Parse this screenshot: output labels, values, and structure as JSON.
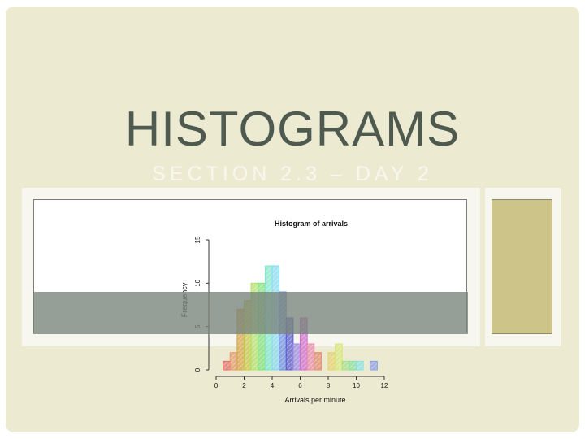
{
  "slide": {
    "title": "HISTOGRAMS",
    "subtitle": "SECTION 2.3 – DAY 2"
  },
  "chart_data": {
    "type": "bar",
    "title": "Histogram of arrivals",
    "xlabel": "Arrivals per minute",
    "ylabel": "Frequency",
    "xlim": [
      0,
      12
    ],
    "ylim": [
      0,
      15
    ],
    "xticks": [
      "0",
      "2",
      "4",
      "6",
      "8",
      "10",
      "12"
    ],
    "yticks": [
      "0",
      "5",
      "10",
      "15"
    ],
    "bin_width": 0.5,
    "bins": [
      {
        "x": 0.5,
        "value": 1,
        "color": "#e0706a"
      },
      {
        "x": 1.0,
        "value": 2,
        "color": "#e59a6a"
      },
      {
        "x": 1.5,
        "value": 7,
        "color": "#d6a447"
      },
      {
        "x": 2.0,
        "value": 8,
        "color": "#c5c846"
      },
      {
        "x": 2.5,
        "value": 10,
        "color": "#b3e06a"
      },
      {
        "x": 3.0,
        "value": 10,
        "color": "#7fe07a"
      },
      {
        "x": 3.5,
        "value": 12,
        "color": "#7fe6cc"
      },
      {
        "x": 4.0,
        "value": 12,
        "color": "#86d9ef"
      },
      {
        "x": 4.5,
        "value": 9,
        "color": "#6a8ee6"
      },
      {
        "x": 5.0,
        "value": 6,
        "color": "#5a5ad0"
      },
      {
        "x": 5.5,
        "value": 3,
        "color": "#9a8ae6"
      },
      {
        "x": 6.0,
        "value": 6,
        "color": "#d06ad0"
      },
      {
        "x": 6.5,
        "value": 3,
        "color": "#e88ab0"
      },
      {
        "x": 7.0,
        "value": 2,
        "color": "#e08a70"
      },
      {
        "x": 7.5,
        "value": 0,
        "color": "#e0a070"
      },
      {
        "x": 8.0,
        "value": 2,
        "color": "#e6d070"
      },
      {
        "x": 8.5,
        "value": 3,
        "color": "#d6e67a"
      },
      {
        "x": 9.0,
        "value": 1,
        "color": "#a6e08a"
      },
      {
        "x": 9.5,
        "value": 1,
        "color": "#8ae0a0"
      },
      {
        "x": 10.0,
        "value": 1,
        "color": "#8ae0e0"
      },
      {
        "x": 10.5,
        "value": 0,
        "color": "#8abde0"
      },
      {
        "x": 11.0,
        "value": 1,
        "color": "#8aa0e6"
      }
    ],
    "grid": false
  }
}
